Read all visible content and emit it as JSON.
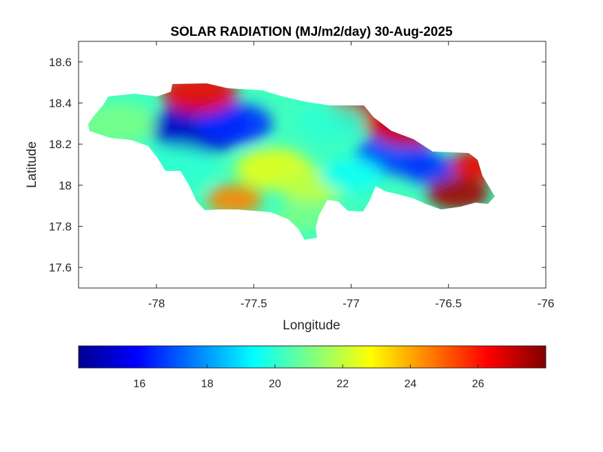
{
  "map": {
    "title": "SOLAR RADIATION (MJ/m2/day) 30-Aug-2025",
    "xlabel": "Longitude",
    "ylabel": "Latitude",
    "xlim": [
      -78.4,
      -76.0
    ],
    "ylim": [
      17.5,
      18.7
    ],
    "xticks": [
      "-78",
      "-77.5",
      "-77",
      "-76.5",
      "-76"
    ],
    "xtick_values": [
      -78,
      -77.5,
      -77,
      -76.5,
      -76
    ],
    "yticks": [
      "17.6",
      "17.8",
      "18",
      "18.2",
      "18.4",
      "18.6"
    ],
    "ytick_values": [
      17.6,
      17.8,
      18.0,
      18.2,
      18.4,
      18.6
    ],
    "colormap": "jet",
    "colorbar": {
      "location": "south",
      "range": [
        14.2,
        28.0
      ],
      "ticks": [
        "16",
        "18",
        "20",
        "22",
        "24",
        "26"
      ],
      "tick_values": [
        16,
        18,
        20,
        22,
        24,
        26
      ]
    },
    "region": "Jamaica",
    "field_features": [
      {
        "lon": -77.78,
        "lat": 18.28,
        "value": 15.2
      },
      {
        "lon": -77.6,
        "lat": 18.3,
        "value": 16.5
      },
      {
        "lon": -76.78,
        "lat": 18.15,
        "value": 16.8
      },
      {
        "lon": -76.6,
        "lat": 18.08,
        "value": 16.6
      },
      {
        "lon": -76.86,
        "lat": 18.38,
        "value": 27.3
      },
      {
        "lon": -76.7,
        "lat": 18.3,
        "value": 26.8
      },
      {
        "lon": -77.78,
        "lat": 18.45,
        "value": 26.5
      },
      {
        "lon": -76.45,
        "lat": 17.96,
        "value": 27.5
      },
      {
        "lon": -76.35,
        "lat": 18.1,
        "value": 26.5
      },
      {
        "lon": -77.6,
        "lat": 17.93,
        "value": 24.5
      },
      {
        "lon": -77.4,
        "lat": 18.08,
        "value": 22.5
      },
      {
        "lon": -77.2,
        "lat": 18.0,
        "value": 22.0
      },
      {
        "lon": -77.0,
        "lat": 18.05,
        "value": 19.5
      },
      {
        "lon": -77.9,
        "lat": 18.08,
        "value": 20.0
      },
      {
        "lon": -78.2,
        "lat": 18.3,
        "value": 21.0
      },
      {
        "lon": -77.1,
        "lat": 18.3,
        "value": 20.0
      },
      {
        "lon": -77.25,
        "lat": 17.85,
        "value": 21.0
      }
    ]
  }
}
